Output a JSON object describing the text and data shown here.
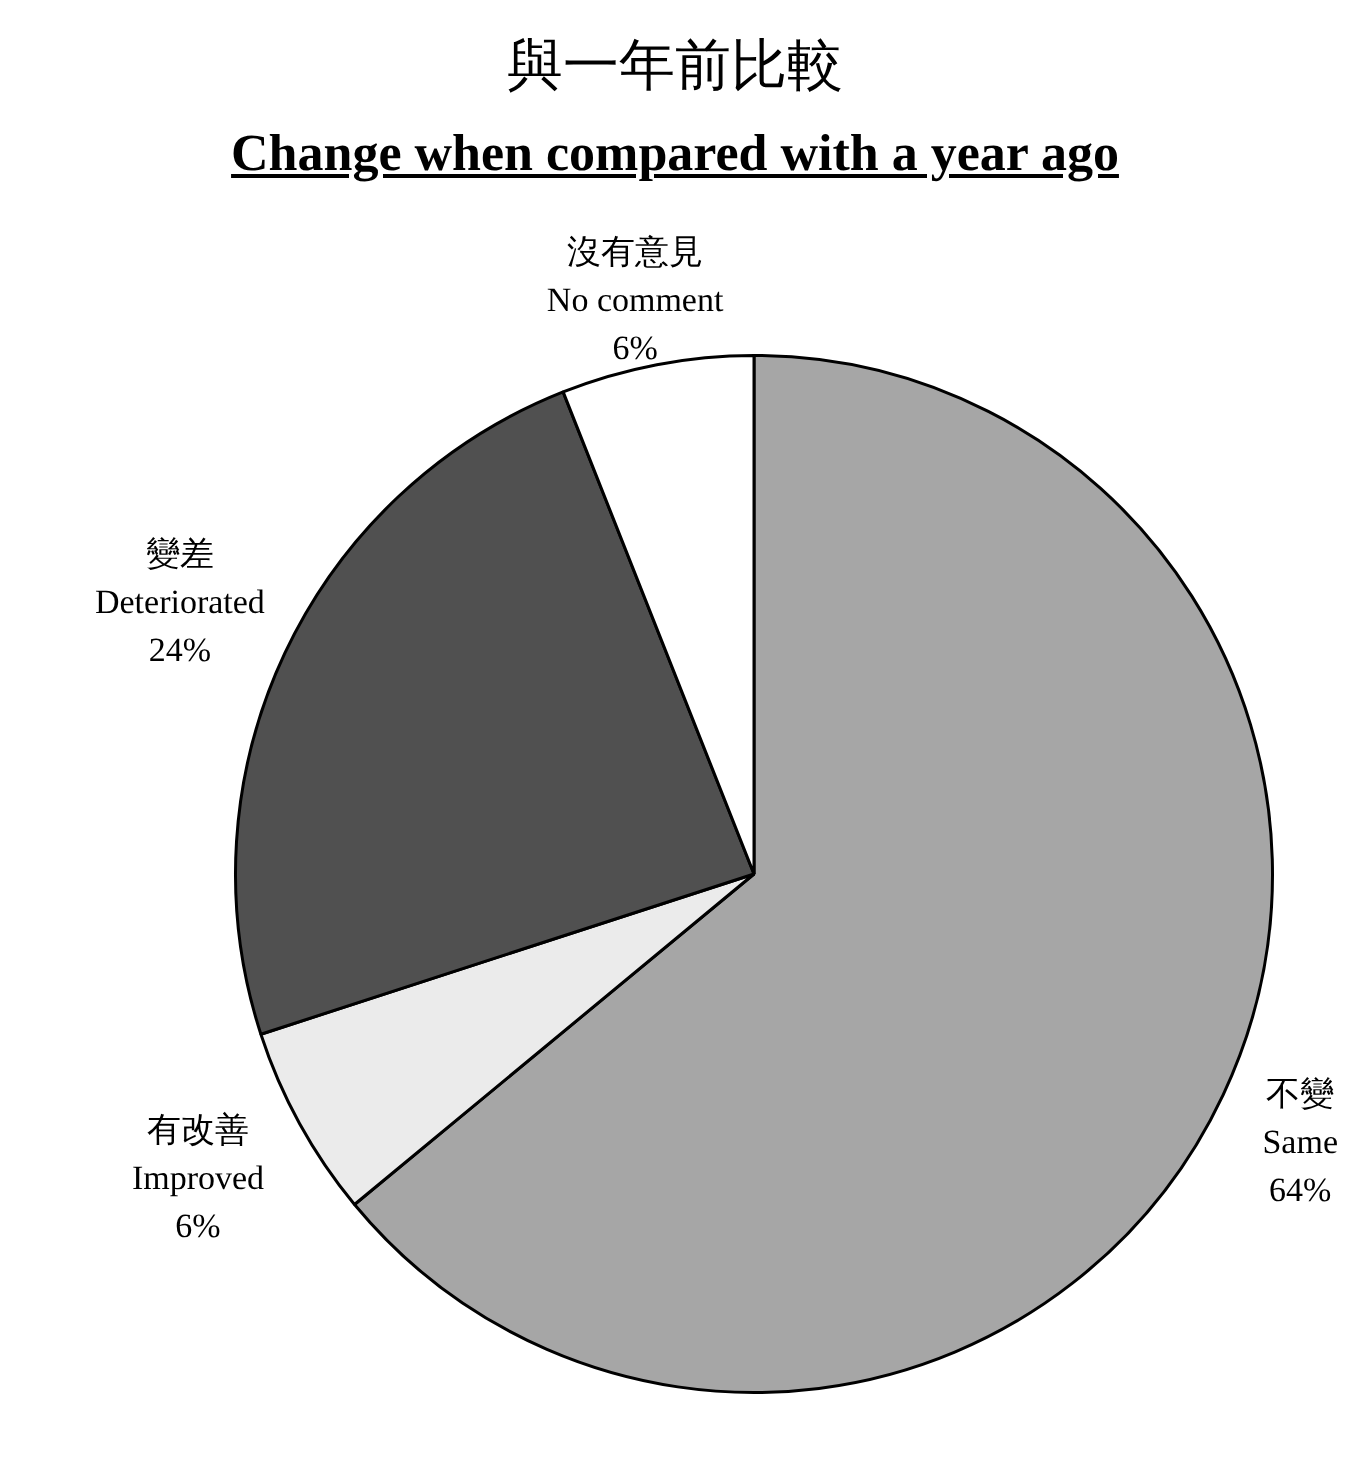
{
  "chart_data": {
    "type": "pie",
    "title": "與一年前比較",
    "subtitle": "Change when compared with a year ago",
    "categories": [
      "不變\nSame",
      "有改善\nImproved",
      "變差\nDeteriorated",
      "沒有意見\nNo comment"
    ],
    "values": [
      64,
      6,
      24,
      6
    ],
    "value_labels": [
      "64%",
      "6%",
      "24%",
      "6%"
    ],
    "colors": [
      "#a6a6a6",
      "#ebebeb",
      "#505050",
      "#ffffff"
    ],
    "legend": false
  }
}
